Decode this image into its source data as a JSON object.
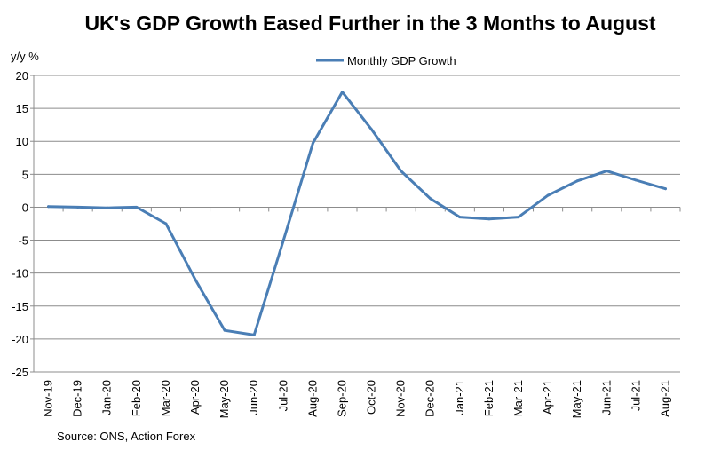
{
  "chart_data": {
    "type": "line",
    "title": "UK's GDP Growth Eased Further in the 3 Months to August",
    "ylabel": "y/y %",
    "xlabel": "",
    "ylim": [
      -25,
      20
    ],
    "yticks": [
      20,
      15,
      10,
      5,
      0,
      -5,
      -10,
      -15,
      -20,
      -25
    ],
    "grid": true,
    "legend_position": "top-center",
    "categories": [
      "Nov-19",
      "Dec-19",
      "Jan-20",
      "Feb-20",
      "Mar-20",
      "Apr-20",
      "May-20",
      "Jun-20",
      "Jul-20",
      "Aug-20",
      "Sep-20",
      "Oct-20",
      "Nov-20",
      "Dec-20",
      "Jan-21",
      "Feb-21",
      "Mar-21",
      "Apr-21",
      "May-21",
      "Jun-21",
      "Jul-21",
      "Aug-21"
    ],
    "series": [
      {
        "name": "Monthly GDP Growth",
        "color": "#4a7eb5",
        "values": [
          0.1,
          0.0,
          -0.1,
          0.0,
          -2.5,
          -11.0,
          -18.7,
          -19.4,
          -5.0,
          9.7,
          17.5,
          11.8,
          5.5,
          1.3,
          -1.5,
          -1.8,
          -1.5,
          1.8,
          4.0,
          5.5,
          4.1,
          2.8
        ]
      }
    ],
    "source": "Source: ONS, Action Forex"
  }
}
